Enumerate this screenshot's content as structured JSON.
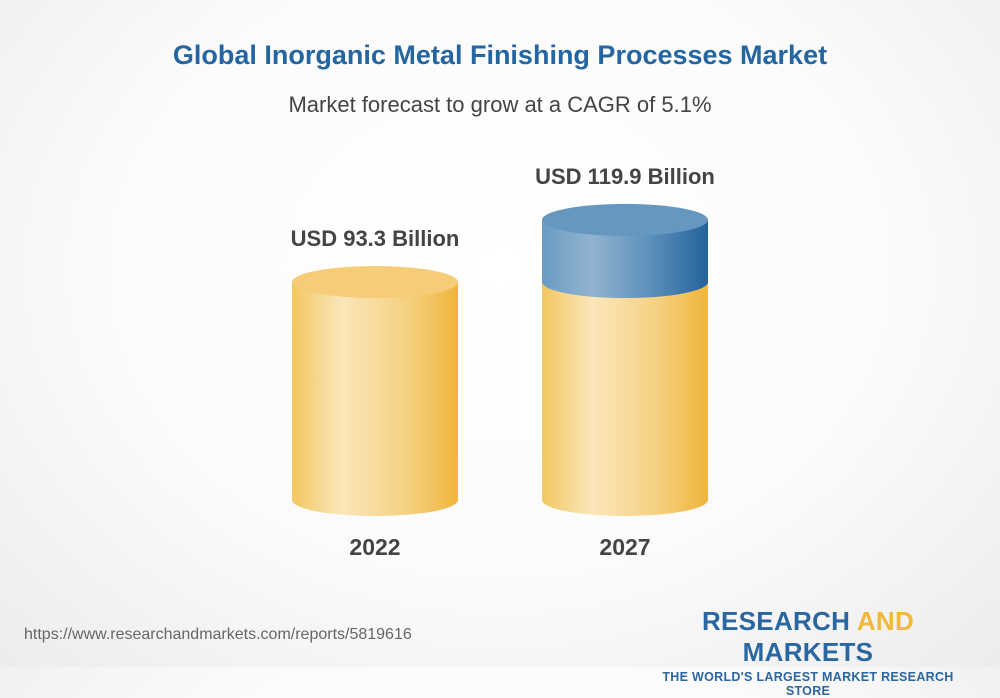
{
  "header": {
    "title": "Global Inorganic Metal Finishing Processes Market",
    "subtitle": "Market forecast to grow at a CAGR of 5.1%"
  },
  "chart_data": {
    "type": "bar",
    "style": "3d-cylinder",
    "categories": [
      "2022",
      "2027"
    ],
    "values": [
      93.3,
      119.9
    ],
    "data_labels": [
      "USD 93.3 Billion",
      "USD 119.9 Billion"
    ],
    "unit": "USD Billion",
    "colors": {
      "base": "#f2c04e",
      "growth": "#2a69a0"
    },
    "grid": false
  },
  "footer": {
    "url": "https://www.researchandmarkets.com/reports/5819616",
    "logo": {
      "part1": "RESEARCH",
      "part2": "AND",
      "part3": "MARKETS",
      "tagline": "THE WORLD'S LARGEST MARKET RESEARCH STORE"
    }
  }
}
